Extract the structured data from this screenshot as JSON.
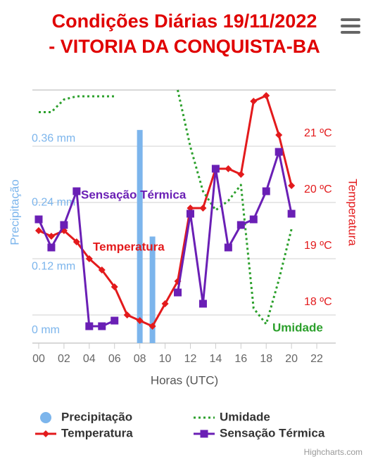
{
  "chart_data": {
    "type": "combo",
    "title": [
      "Condições Diárias 19/11/2022",
      "- VITORIA DA CONQUISTA-BA"
    ],
    "x_label": "Horas (UTC)",
    "y_label": "Precipitação",
    "y2_label": "Temperatura",
    "credit": "Highcharts.com",
    "x": [
      0,
      1,
      2,
      3,
      4,
      5,
      6,
      7,
      8,
      9,
      10,
      11,
      12,
      13,
      14,
      15,
      16,
      17,
      18,
      19,
      20
    ],
    "xlim": [
      -0.5,
      23.5
    ],
    "xticks": [
      {
        "value": 0,
        "label": "00"
      },
      {
        "value": 2,
        "label": "02"
      },
      {
        "value": 4,
        "label": "04"
      },
      {
        "value": 6,
        "label": "06"
      },
      {
        "value": 8,
        "label": "08"
      },
      {
        "value": 10,
        "label": "10"
      },
      {
        "value": 12,
        "label": "12"
      },
      {
        "value": 14,
        "label": "14"
      },
      {
        "value": 16,
        "label": "16"
      },
      {
        "value": 18,
        "label": "18"
      },
      {
        "value": 20,
        "label": "20"
      },
      {
        "value": 22,
        "label": "22"
      }
    ],
    "ylim": [
      0,
      0.475
    ],
    "yticks": [
      {
        "value": 0,
        "label": "0 mm"
      },
      {
        "value": 0.12,
        "label": "0.12 mm"
      },
      {
        "value": 0.24,
        "label": "0.24 mm"
      },
      {
        "value": 0.36,
        "label": "0.36 mm"
      }
    ],
    "y2lim": [
      17.5,
      22
    ],
    "y2ticks": [
      {
        "value": 18,
        "label": "18 ºC"
      },
      {
        "value": 19,
        "label": "19 ºC"
      },
      {
        "value": 20,
        "label": "20 ºC"
      },
      {
        "value": 21,
        "label": "21 ºC"
      }
    ],
    "y3lim": [
      20,
      100
    ],
    "grid": true,
    "series": [
      {
        "name": "Precipitação",
        "type": "bar",
        "color": "#7cb5ec",
        "axis": "y",
        "values": [
          0,
          0,
          0,
          0,
          0,
          0,
          0,
          0,
          0.4,
          0.2,
          0,
          0,
          0,
          0,
          0,
          0,
          0,
          0,
          0,
          0,
          0
        ]
      },
      {
        "name": "Temperatura",
        "type": "line",
        "color": "#e31a1c",
        "axis": "y2",
        "marker": "diamond",
        "values": [
          19.5,
          19.4,
          19.5,
          19.3,
          19.0,
          18.8,
          18.5,
          18.0,
          17.9,
          17.8,
          18.2,
          18.6,
          19.9,
          19.9,
          20.6,
          20.6,
          20.5,
          21.8,
          21.9,
          21.2,
          20.3
        ]
      },
      {
        "name": "Umidade",
        "type": "line",
        "color": "#2ca02c",
        "axis": "y3",
        "dash": "dot",
        "values": [
          93,
          93,
          97,
          98,
          98,
          98,
          98,
          null,
          null,
          null,
          null,
          100,
          82,
          68,
          62,
          65,
          70,
          31,
          26,
          40,
          56
        ]
      },
      {
        "name": "Sensação Térmica",
        "type": "line",
        "color": "#6a1fb5",
        "axis": "y2",
        "marker": "square",
        "values": [
          19.7,
          19.2,
          19.6,
          20.2,
          17.8,
          17.8,
          17.9,
          null,
          null,
          null,
          null,
          18.4,
          19.8,
          18.2,
          20.6,
          19.2,
          19.6,
          19.7,
          20.2,
          20.9,
          19.8
        ]
      }
    ],
    "annotations": [
      {
        "text": "Sensação Térmica",
        "series": 3
      },
      {
        "text": "Temperatura",
        "series": 1
      },
      {
        "text": "Umidade",
        "series": 2
      }
    ]
  }
}
